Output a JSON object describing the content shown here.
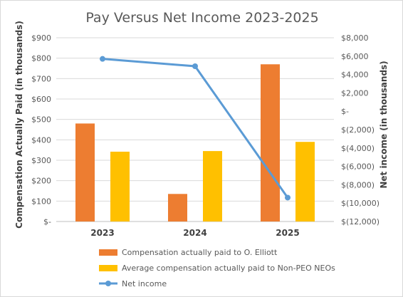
{
  "chart_data": {
    "type": "bar",
    "title": "Pay Versus Net Income 2023-2025",
    "categories": [
      "2023",
      "2024",
      "2025"
    ],
    "y_left": {
      "label": "Compensation Actually Paid (in thousands)",
      "min": 0,
      "max": 900,
      "step": 100,
      "tick_labels": [
        "$-",
        "$100",
        "$200",
        "$300",
        "$400",
        "$500",
        "$600",
        "$700",
        "$800",
        "$900"
      ]
    },
    "y_right": {
      "label": "Net income (in thousands)",
      "min": -12000,
      "max": 8000,
      "step": 2000,
      "tick_labels": [
        "$(12,000)",
        "$(10,000)",
        "$(8,000)",
        "$(6,000)",
        "$(4,000)",
        "$(2,000)",
        "$-",
        "$2,000",
        "$4,000",
        "$6,000",
        "$8,000"
      ]
    },
    "series": [
      {
        "name": "Compensation actually paid to O. Elliott",
        "type": "bar",
        "axis": "left",
        "color": "#ed7d31",
        "values": [
          480,
          135,
          770
        ]
      },
      {
        "name": "Average compensation actually paid to Non-PEO NEOs",
        "type": "bar",
        "axis": "left",
        "color": "#ffc000",
        "values": [
          342,
          345,
          390
        ]
      },
      {
        "name": "Net income",
        "type": "line",
        "axis": "right",
        "color": "#5b9bd5",
        "values": [
          5700,
          4900,
          -9400
        ]
      }
    ],
    "grid": true,
    "legend_position": "bottom"
  }
}
